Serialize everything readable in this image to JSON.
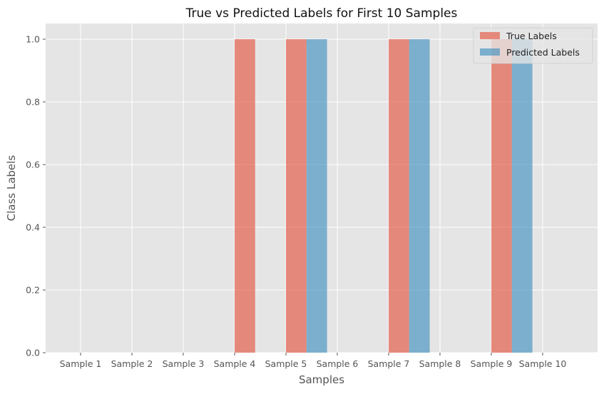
{
  "chart_data": {
    "type": "bar",
    "title": "True vs Predicted Labels for First 10 Samples",
    "xlabel": "Samples",
    "ylabel": "Class Labels",
    "categories": [
      "Sample 1",
      "Sample 2",
      "Sample 3",
      "Sample 4",
      "Sample 5",
      "Sample 6",
      "Sample 7",
      "Sample 8",
      "Sample 9",
      "Sample 10"
    ],
    "series": [
      {
        "name": "True Labels",
        "color": "#E24A33",
        "values": [
          0,
          0,
          0,
          1,
          1,
          0,
          1,
          0,
          1,
          0
        ]
      },
      {
        "name": "Predicted Labels",
        "color": "#348ABD",
        "values": [
          0,
          0,
          0,
          0,
          1,
          0,
          1,
          0,
          1,
          0
        ]
      }
    ],
    "ylim": [
      0,
      1.05
    ],
    "yticks": [
      "0.0",
      "0.2",
      "0.4",
      "0.6",
      "0.8",
      "1.0"
    ],
    "grid": true,
    "legend_position": "top-right",
    "colors": {
      "plot_background": "#E5E5E5",
      "grid": "#FFFFFF",
      "text": "#555555"
    }
  }
}
